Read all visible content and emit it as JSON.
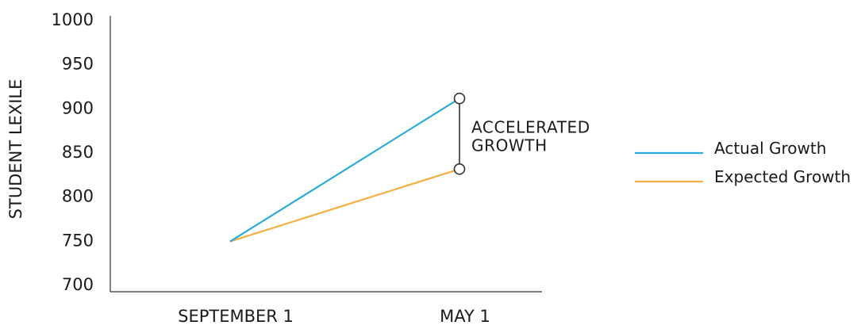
{
  "colors": {
    "actual": "#29abe2",
    "expected": "#f5b041",
    "axis": "#333333",
    "text": "#1a1a1a"
  },
  "chart_data": {
    "type": "line",
    "title": "",
    "xlabel": "",
    "ylabel": "STUDENT LEXILE",
    "categories": [
      "SEPTEMBER 1",
      "MAY 1"
    ],
    "ylim": [
      700,
      1000
    ],
    "yticks": [
      700,
      750,
      800,
      850,
      900,
      950,
      1000
    ],
    "grid": false,
    "legend_position": "right",
    "series": [
      {
        "name": "Actual Growth",
        "values": [
          748,
          910
        ],
        "color_key": "actual"
      },
      {
        "name": "Expected Growth",
        "values": [
          748,
          830
        ],
        "color_key": "expected"
      }
    ],
    "annotations": [
      {
        "lines": [
          "ACCELERATED",
          "GROWTH"
        ],
        "category": "MAY 1",
        "y_from": 830,
        "y_to": 910
      }
    ]
  }
}
